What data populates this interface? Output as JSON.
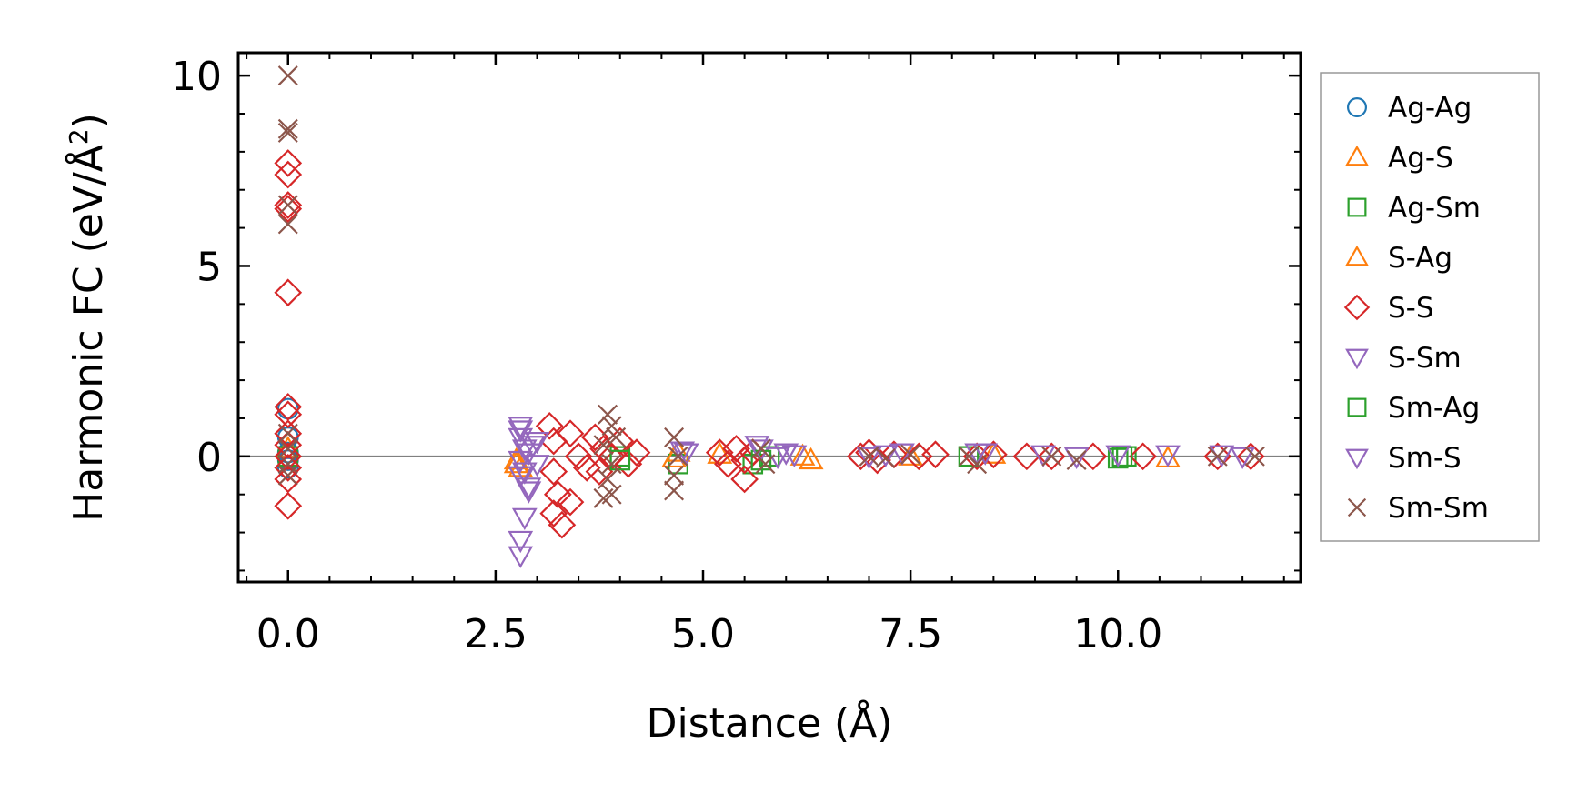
{
  "chart_data": {
    "type": "scatter",
    "title": "",
    "xlabel": "Distance (Å)",
    "ylabel_main": "Harmonic FC (eV/Å",
    "ylabel_sup": "2",
    "ylabel_close": ")",
    "xlim": [
      -0.6,
      12.2
    ],
    "ylim": [
      -3.3,
      10.6
    ],
    "xticks": [
      0.0,
      2.5,
      5.0,
      7.5,
      10.0
    ],
    "xtick_labels": [
      "0.0",
      "2.5",
      "5.0",
      "7.5",
      "10.0"
    ],
    "yticks": [
      0,
      5,
      10
    ],
    "ytick_labels": [
      "0",
      "5",
      "10"
    ],
    "x_minor_step": 0.5,
    "y_minor_step": 1,
    "zero_line": true,
    "legend_position": "right-outside",
    "series": [
      {
        "name": "Ag-Ag",
        "label": "Ag-Ag",
        "marker": "circle",
        "color": "#1f77b4",
        "points": [
          [
            0,
            1.25
          ],
          [
            0,
            0.5
          ],
          [
            0,
            0.1
          ],
          [
            0,
            -0.1
          ],
          [
            0,
            -0.3
          ]
        ]
      },
      {
        "name": "Ag-S",
        "label": "Ag-S",
        "marker": "triangle-up",
        "color": "#ff7f0e",
        "points": [
          [
            0,
            0.2
          ],
          [
            2.75,
            -0.2
          ],
          [
            2.8,
            -0.3
          ],
          [
            4.65,
            -0.05
          ],
          [
            5.2,
            0.05
          ],
          [
            6.3,
            -0.1
          ],
          [
            7.5,
            0.0
          ],
          [
            10.6,
            -0.05
          ]
        ]
      },
      {
        "name": "Ag-Sm",
        "label": "Ag-Sm",
        "marker": "square",
        "color": "#2ca02c",
        "points": [
          [
            0,
            0.0
          ],
          [
            4.0,
            0.0
          ],
          [
            4.7,
            -0.2
          ],
          [
            5.6,
            -0.2
          ],
          [
            5.8,
            0.0
          ],
          [
            8.2,
            0.0
          ],
          [
            10.0,
            -0.05
          ],
          [
            10.1,
            0.0
          ]
        ]
      },
      {
        "name": "S-Ag",
        "label": "S-Ag",
        "marker": "triangle-up",
        "color": "#ff7f0e",
        "points": [
          [
            2.75,
            -0.1
          ],
          [
            4.7,
            0.1
          ],
          [
            6.2,
            0.0
          ],
          [
            8.5,
            0.05
          ]
        ]
      },
      {
        "name": "S-S",
        "label": "S-S",
        "marker": "diamond",
        "color": "#d62728",
        "points": [
          [
            0,
            7.7
          ],
          [
            0,
            7.4
          ],
          [
            0,
            6.6
          ],
          [
            0,
            6.5
          ],
          [
            0,
            4.3
          ],
          [
            0,
            1.3
          ],
          [
            0,
            1.1
          ],
          [
            0,
            0.6
          ],
          [
            0,
            0.3
          ],
          [
            0,
            0.0
          ],
          [
            0,
            -0.3
          ],
          [
            0,
            -0.6
          ],
          [
            0,
            -1.3
          ],
          [
            3.15,
            0.8
          ],
          [
            3.2,
            0.4
          ],
          [
            3.2,
            -0.4
          ],
          [
            3.25,
            -1.0
          ],
          [
            3.2,
            -1.5
          ],
          [
            3.3,
            -1.8
          ],
          [
            3.4,
            -1.2
          ],
          [
            3.4,
            0.6
          ],
          [
            3.5,
            0.0
          ],
          [
            3.6,
            -0.3
          ],
          [
            3.7,
            0.5
          ],
          [
            3.75,
            -0.4
          ],
          [
            3.8,
            0.2
          ],
          [
            3.9,
            0.0
          ],
          [
            4.0,
            0.4
          ],
          [
            4.1,
            -0.2
          ],
          [
            4.2,
            0.1
          ],
          [
            5.2,
            0.1
          ],
          [
            5.3,
            -0.2
          ],
          [
            5.4,
            0.2
          ],
          [
            5.5,
            -0.6
          ],
          [
            5.5,
            -0.1
          ],
          [
            5.6,
            0.1
          ],
          [
            6.9,
            0.0
          ],
          [
            7.0,
            0.1
          ],
          [
            7.1,
            -0.1
          ],
          [
            7.3,
            0.05
          ],
          [
            7.6,
            0.0
          ],
          [
            7.8,
            0.05
          ],
          [
            8.3,
            0.0
          ],
          [
            8.5,
            0.05
          ],
          [
            8.9,
            0.0
          ],
          [
            9.2,
            0.0
          ],
          [
            9.7,
            0.0
          ],
          [
            10.3,
            0.0
          ],
          [
            11.2,
            0.0
          ],
          [
            11.6,
            0.0
          ]
        ]
      },
      {
        "name": "S-Sm",
        "label": "S-Sm",
        "marker": "triangle-down",
        "color": "#9467bd",
        "points": [
          [
            2.8,
            0.8
          ],
          [
            2.8,
            0.5
          ],
          [
            2.85,
            0.2
          ],
          [
            2.8,
            -0.1
          ],
          [
            2.85,
            -0.4
          ],
          [
            2.9,
            -0.8
          ],
          [
            2.85,
            -1.6
          ],
          [
            2.8,
            -2.2
          ],
          [
            2.8,
            -2.6
          ],
          [
            2.95,
            0.3
          ],
          [
            3.0,
            -0.2
          ],
          [
            4.8,
            0.1
          ],
          [
            5.7,
            0.2
          ],
          [
            5.9,
            0.0
          ],
          [
            6.1,
            0.05
          ],
          [
            7.0,
            0.0
          ],
          [
            7.4,
            0.1
          ],
          [
            8.4,
            0.1
          ],
          [
            9.5,
            0.0
          ],
          [
            10.6,
            0.05
          ],
          [
            11.5,
            0.0
          ]
        ]
      },
      {
        "name": "Sm-Ag",
        "label": "Sm-Ag",
        "marker": "square",
        "color": "#2ca02c",
        "points": [
          [
            4.0,
            -0.1
          ],
          [
            5.7,
            -0.1
          ],
          [
            10.05,
            0.0
          ]
        ]
      },
      {
        "name": "Sm-S",
        "label": "Sm-S",
        "marker": "triangle-down",
        "color": "#9467bd",
        "points": [
          [
            2.8,
            0.7
          ],
          [
            2.9,
            0.1
          ],
          [
            2.8,
            -0.5
          ],
          [
            2.9,
            -0.9
          ],
          [
            3.0,
            0.4
          ],
          [
            4.75,
            0.15
          ],
          [
            5.65,
            0.3
          ],
          [
            6.0,
            0.1
          ],
          [
            7.2,
            0.05
          ],
          [
            8.3,
            0.1
          ],
          [
            9.1,
            0.05
          ],
          [
            10.0,
            0.05
          ],
          [
            11.25,
            0.05
          ]
        ]
      },
      {
        "name": "Sm-Sm",
        "label": "Sm-Sm",
        "marker": "x",
        "color": "#8c564b",
        "points": [
          [
            0,
            10.0
          ],
          [
            0,
            8.6
          ],
          [
            0,
            8.5
          ],
          [
            0,
            6.6
          ],
          [
            0,
            6.1
          ],
          [
            0,
            0.6
          ],
          [
            0,
            0.2
          ],
          [
            0,
            -0.2
          ],
          [
            0,
            -0.5
          ],
          [
            3.85,
            1.1
          ],
          [
            3.9,
            0.8
          ],
          [
            3.8,
            0.3
          ],
          [
            3.9,
            -0.2
          ],
          [
            3.85,
            -0.6
          ],
          [
            3.9,
            -1.0
          ],
          [
            3.8,
            -1.1
          ],
          [
            3.95,
            0.5
          ],
          [
            4.65,
            0.5
          ],
          [
            4.7,
            0.0
          ],
          [
            4.65,
            -0.5
          ],
          [
            4.65,
            -0.9
          ],
          [
            5.7,
            0.2
          ],
          [
            5.75,
            -0.2
          ],
          [
            7.0,
            0.0
          ],
          [
            7.2,
            -0.05
          ],
          [
            7.5,
            0.05
          ],
          [
            8.2,
            0.0
          ],
          [
            8.3,
            -0.2
          ],
          [
            9.2,
            0.0
          ],
          [
            9.5,
            -0.1
          ],
          [
            11.2,
            0.0
          ],
          [
            11.65,
            0.0
          ]
        ]
      }
    ]
  }
}
